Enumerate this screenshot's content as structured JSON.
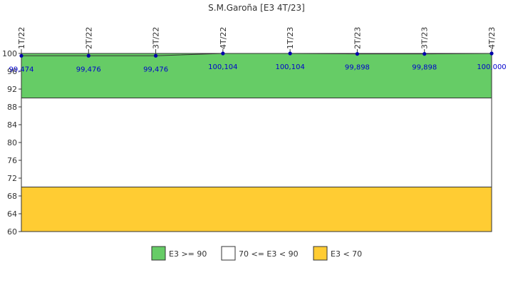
{
  "chart_data": {
    "type": "line",
    "title": "S.M.Garoña [E3 4T/23]",
    "categories": [
      "1T/22",
      "2T/22",
      "3T/22",
      "4T/22",
      "1T/23",
      "2T/23",
      "3T/23",
      "4T/23"
    ],
    "series": [
      {
        "values": [
          99.474,
          99.476,
          99.476,
          100.104,
          100.104,
          99.898,
          99.898,
          100.0
        ],
        "labels": [
          "99,474",
          "99,476",
          "99,476",
          "100,104",
          "100,104",
          "99,898",
          "99,898",
          "100,000"
        ],
        "color": "#0000aa"
      }
    ],
    "ylim": [
      60,
      100
    ],
    "yticks": [
      "60",
      "64",
      "68",
      "72",
      "76",
      "80",
      "84",
      "88",
      "92",
      "96",
      "100"
    ],
    "yticks_values": [
      60,
      64,
      68,
      72,
      76,
      80,
      84,
      88,
      92,
      96,
      100
    ],
    "bands": [
      {
        "from": 90,
        "to": 100,
        "color": "#66cc66",
        "legend": "E3 >= 90"
      },
      {
        "from": 70,
        "to": 90,
        "color": "#ffffff",
        "legend": "70 <= E3 < 90"
      },
      {
        "from": 60,
        "to": 70,
        "color": "#ffcc33",
        "legend": "E3 < 70"
      }
    ],
    "legend_position": "bottom-center"
  }
}
